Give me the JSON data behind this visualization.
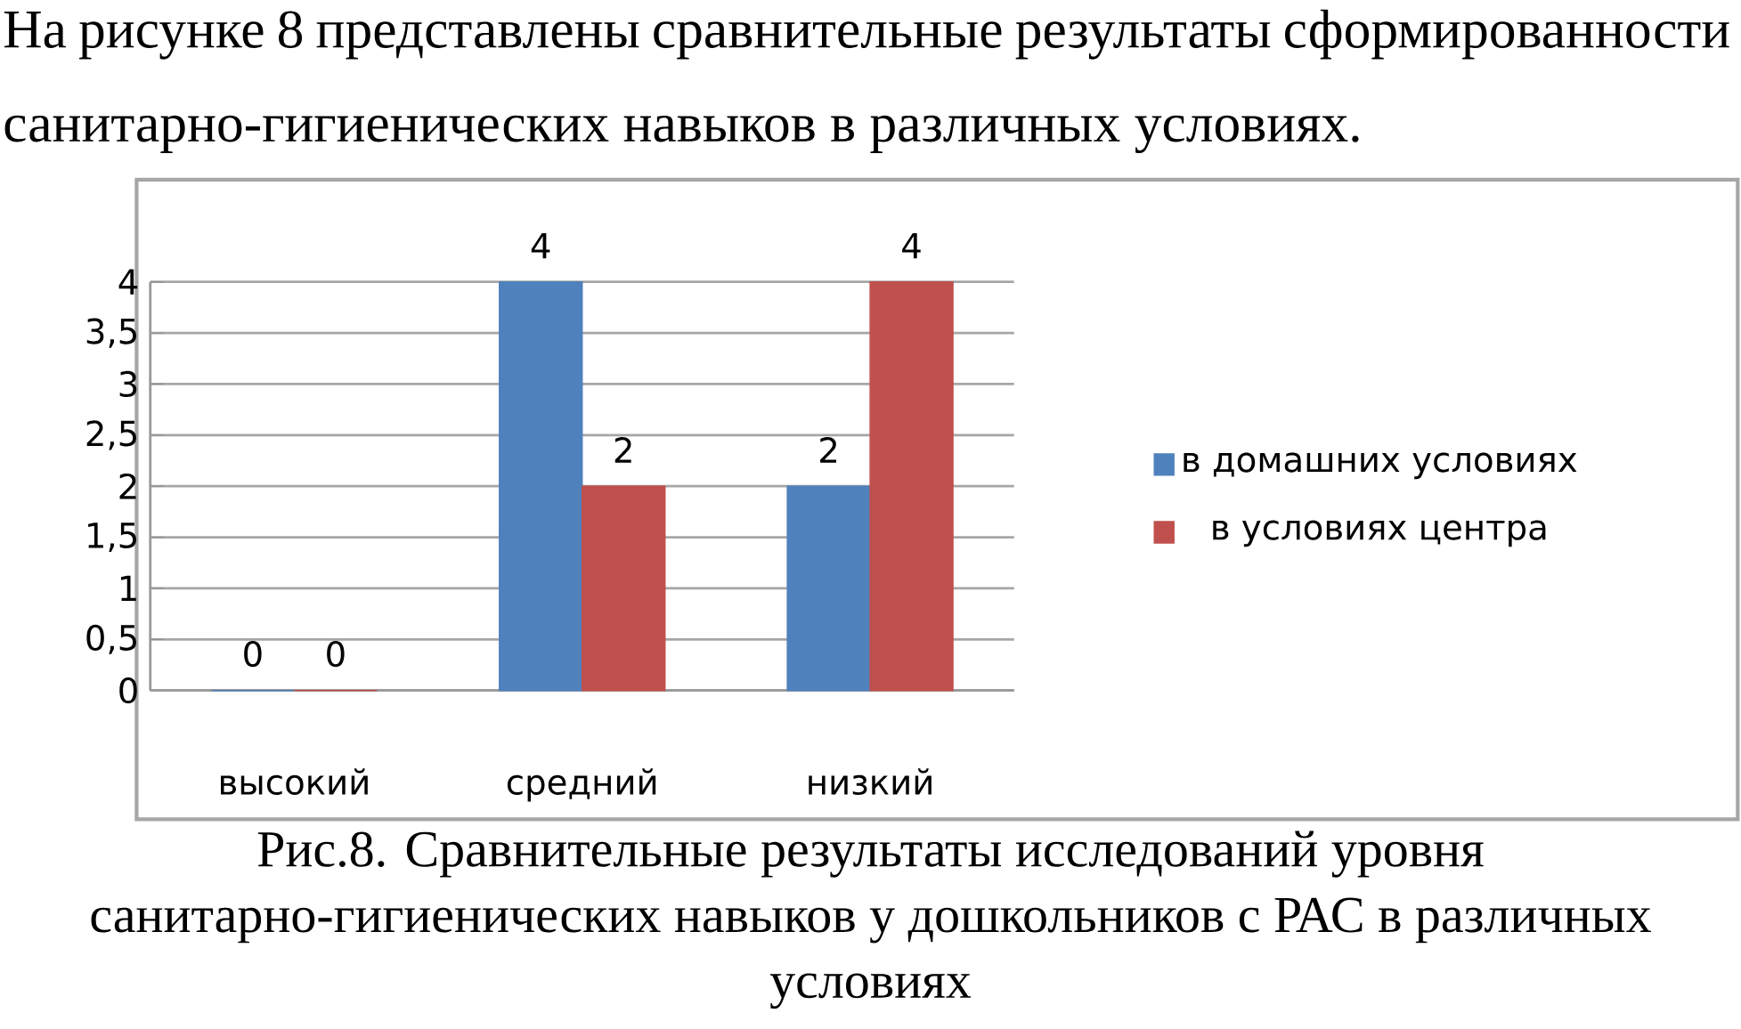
{
  "chart_data": {
    "type": "bar",
    "subtitle": "На рисунке 8 представлены сравнительные результаты сформированности санитарно-гигиенических навыков в различных условиях.",
    "annotations": [
      "Рис.8. Сравнительные результаты исследований уровня санитарно-гигиенических навыков у дошкольников с РАС в различных условиях"
    ],
    "categories": [
      "высокий",
      "средний",
      "низкий"
    ],
    "series": [
      {
        "name": "в домашних условиях",
        "color": "#4f81bd",
        "values": [
          0,
          4,
          2
        ]
      },
      {
        "name": "в условиях центра",
        "color": "#c0504d",
        "values": [
          0,
          2,
          4
        ]
      }
    ],
    "ylim": [
      0,
      4
    ],
    "yticks": [
      0,
      {
        "value": 0.5,
        "label": "0,5"
      },
      1,
      {
        "value": 1.5,
        "label": "1,5"
      },
      2,
      {
        "value": 2.5,
        "label": "2,5"
      },
      3,
      {
        "value": 3.5,
        "label": "3,5"
      },
      4
    ],
    "grid": "y",
    "legend": "right",
    "data_labels": true
  }
}
